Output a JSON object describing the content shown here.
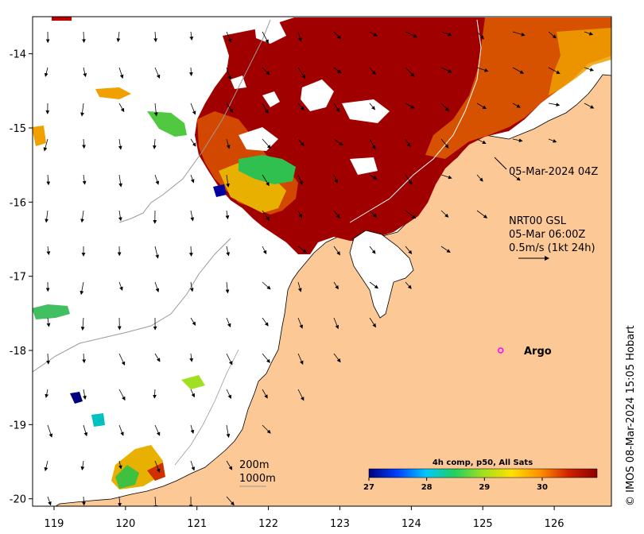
{
  "map": {
    "lon_ticks": [
      119,
      120,
      121,
      122,
      123,
      124,
      125,
      126
    ],
    "lat_ticks": [
      -14,
      -15,
      -16,
      -17,
      -18,
      -19,
      -20
    ],
    "lon_tick_labels": [
      "119",
      "120",
      "121",
      "122",
      "123",
      "124",
      "125",
      "126"
    ],
    "lat_tick_labels": [
      "-14",
      "-15",
      "-16",
      "-17",
      "-18",
      "-19",
      "-20"
    ],
    "lon_range": [
      118.7,
      126.8
    ],
    "lat_range": [
      -20.1,
      -13.5
    ]
  },
  "annotations": {
    "pass_time": "05-Mar-2024 04Z",
    "current_source": "NRT00 GSL",
    "current_time": "05-Mar 06:00Z",
    "current_scale": "0.5m/s (1kt 24h)",
    "argo_label": "Argo",
    "isobath_200": "200m",
    "isobath_1000": "1000m",
    "credit": "© IMOS 08-Mar-2024 15:05 Hobart"
  },
  "argo_float": {
    "lon": 125.25,
    "lat": -18.0
  },
  "colorbar": {
    "title": "4h comp, p50, All Sats",
    "tick_values": [
      27,
      28,
      29,
      30
    ],
    "tick_labels": [
      "27",
      "28",
      "29",
      "30"
    ],
    "range": [
      27,
      30.95
    ],
    "colors": [
      "#00007f",
      "#0040ff",
      "#00c8ff",
      "#20d060",
      "#a0e020",
      "#ffe000",
      "#ff9000",
      "#d02000",
      "#8b0000"
    ]
  },
  "colors": {
    "land": "#fcc896",
    "hot_sst": "#a00000",
    "coastline": "#000000",
    "isobath": "#999999",
    "argo": "#ff00ff"
  }
}
